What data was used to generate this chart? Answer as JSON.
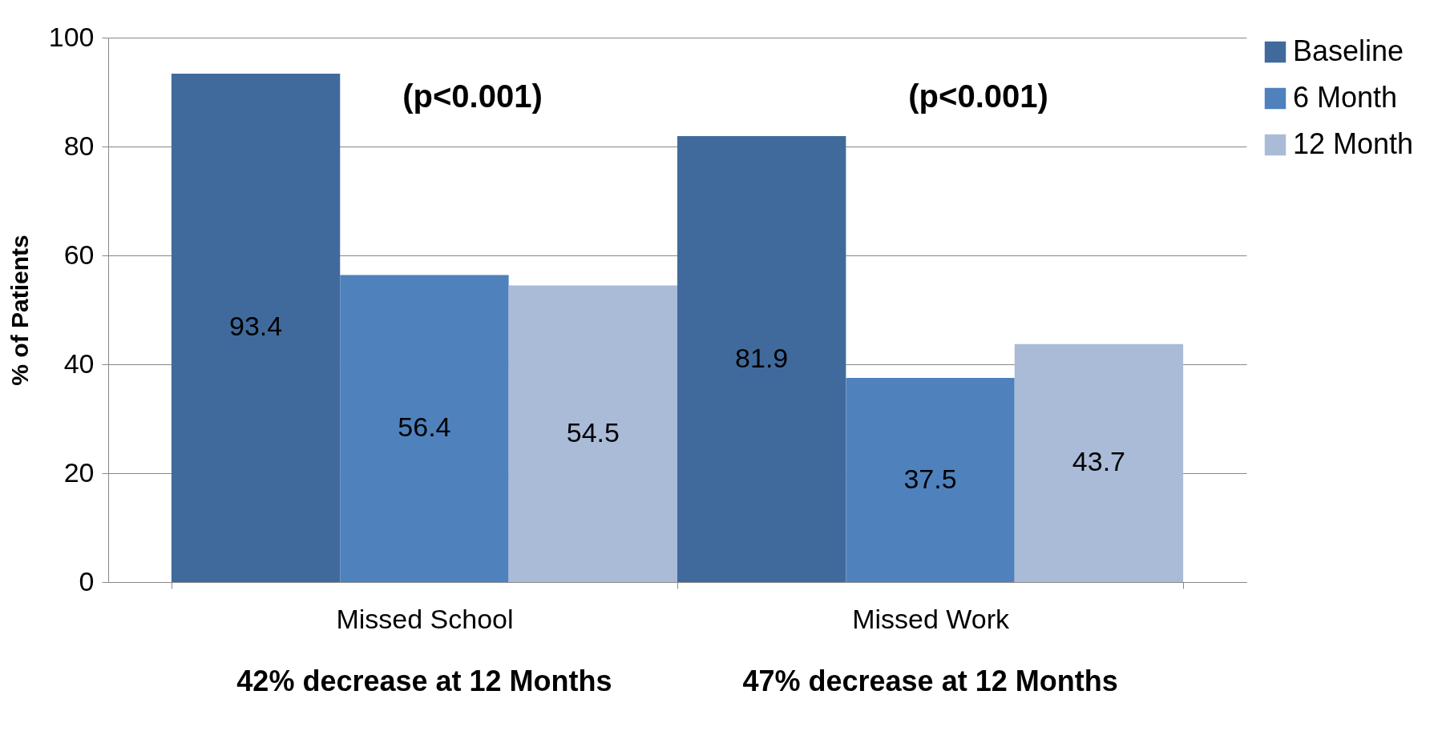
{
  "chart_data": {
    "type": "bar",
    "ylabel": "% of Patients",
    "categories": [
      "Missed School",
      "Missed Work"
    ],
    "series": [
      {
        "name": "Baseline",
        "color": "#416a9c",
        "values": [
          93.4,
          81.9
        ]
      },
      {
        "name": "6 Month",
        "color": "#4f81bd",
        "values": [
          56.4,
          37.5
        ]
      },
      {
        "name": "12 Month",
        "color": "#aabbd8",
        "values": [
          54.5,
          43.7
        ]
      }
    ],
    "ylim": [
      0,
      100
    ],
    "yticks": [
      0,
      20,
      40,
      60,
      80,
      100
    ],
    "grid": "y",
    "legend": "right",
    "data_labels": true,
    "annotations": [
      "(p<0.001)",
      "(p<0.001)",
      "42% decrease at 12 Months",
      "47% decrease at 12 Months"
    ]
  }
}
